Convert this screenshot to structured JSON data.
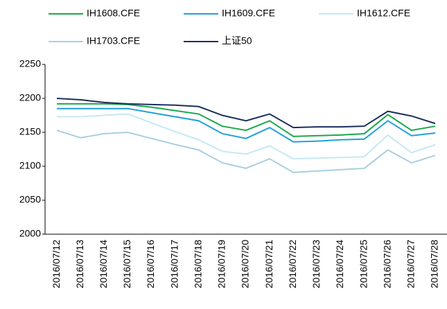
{
  "chart_data": {
    "type": "line",
    "categories": [
      "2016/07/12",
      "2016/07/13",
      "2016/07/14",
      "2016/07/15",
      "2016/07/16",
      "2016/07/17",
      "2016/07/18",
      "2016/07/19",
      "2016/07/20",
      "2016/07/21",
      "2016/07/22",
      "2016/07/23",
      "2016/07/24",
      "2016/07/25",
      "2016/07/26",
      "2016/07/27",
      "2016/07/28"
    ],
    "series": [
      {
        "name": "IH1608.CFE",
        "color": "#1aa84a",
        "values": [
          2192,
          2192,
          2192,
          2191,
          2187,
          2182,
          2177,
          2159,
          2153,
          2167,
          2144,
          2145,
          2146,
          2148,
          2176,
          2153,
          2159
        ]
      },
      {
        "name": "IH1609.CFE",
        "color": "#1ea0dc",
        "values": [
          2185,
          2185,
          2185,
          2185,
          2179,
          2173,
          2167,
          2148,
          2141,
          2157,
          2136,
          2137,
          2139,
          2140,
          2167,
          2145,
          2149
        ]
      },
      {
        "name": "IH1612.CFE",
        "color": "#c4e8f5",
        "values": [
          2173,
          2173,
          2175,
          2177,
          2164,
          2151,
          2139,
          2122,
          2118,
          2130,
          2111,
          2112,
          2113,
          2114,
          2146,
          2120,
          2132
        ]
      },
      {
        "name": "IH1703.CFE",
        "color": "#a8cfe0",
        "values": [
          2153,
          2142,
          2148,
          2150,
          2141,
          2132,
          2124,
          2105,
          2097,
          2111,
          2091,
          2093,
          2095,
          2097,
          2124,
          2105,
          2116
        ]
      },
      {
        "name": "上证50",
        "color": "#1b2f5c",
        "values": [
          2200,
          2198,
          2194,
          2192,
          2191,
          2190,
          2188,
          2175,
          2167,
          2177,
          2157,
          2158,
          2158,
          2159,
          2181,
          2174,
          2163
        ]
      }
    ],
    "ylim": [
      2000,
      2250
    ],
    "yticks": [
      2000,
      2050,
      2100,
      2150,
      2200,
      2250
    ],
    "grid": false
  }
}
